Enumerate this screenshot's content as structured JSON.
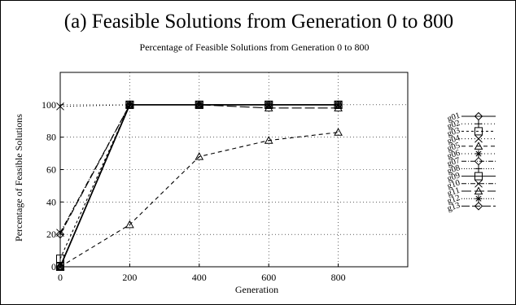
{
  "panel_title": "(a) Feasible Solutions from Generation 0 to 800",
  "chart_data": {
    "type": "line",
    "title": "Percentage of Feasible Solutions from Generation 0 to 800",
    "xlabel": "Generation",
    "ylabel": "Percentage of Feasible Solutions",
    "x": [
      0,
      200,
      400,
      600,
      800
    ],
    "xlim": [
      0,
      1000
    ],
    "ylim": [
      0,
      120
    ],
    "xticks": [
      0,
      200,
      400,
      600,
      800
    ],
    "yticks": [
      0,
      20,
      40,
      60,
      80,
      100
    ],
    "grid": true,
    "legend_position": "right",
    "series": [
      {
        "name": "g01",
        "values": [
          0,
          100,
          100,
          100,
          100
        ],
        "dash": "",
        "marker": "diamond"
      },
      {
        "name": "g02",
        "values": [
          0,
          100,
          100,
          100,
          100
        ],
        "dash": "1,3",
        "marker": "plus"
      },
      {
        "name": "g03",
        "values": [
          5,
          100,
          100,
          100,
          100
        ],
        "dash": "3,3",
        "marker": "square"
      },
      {
        "name": "g04",
        "values": [
          99,
          100,
          100,
          100,
          100
        ],
        "dash": "1,3",
        "marker": "cross"
      },
      {
        "name": "g05",
        "values": [
          0,
          26,
          68,
          78,
          83
        ],
        "dash": "5,4",
        "marker": "triangle"
      },
      {
        "name": "g06",
        "values": [
          0,
          100,
          100,
          100,
          100
        ],
        "dash": "1,3",
        "marker": "star"
      },
      {
        "name": "g07",
        "values": [
          0,
          100,
          100,
          100,
          100
        ],
        "dash": "6,2,1,2",
        "marker": "diamond"
      },
      {
        "name": "g08",
        "values": [
          0,
          100,
          100,
          100,
          100
        ],
        "dash": "1,2",
        "marker": "plus"
      },
      {
        "name": "g09",
        "values": [
          0,
          100,
          100,
          100,
          100
        ],
        "dash": "",
        "marker": "square"
      },
      {
        "name": "g10",
        "values": [
          21,
          100,
          100,
          100,
          100
        ],
        "dash": "6,2,1,2",
        "marker": "cross"
      },
      {
        "name": "g11",
        "values": [
          0,
          100,
          100,
          98,
          98
        ],
        "dash": "12,4",
        "marker": "triangle"
      },
      {
        "name": "g12",
        "values": [
          0,
          100,
          100,
          100,
          100
        ],
        "dash": "1,2",
        "marker": "star"
      },
      {
        "name": "g13",
        "values": [
          20,
          100,
          100,
          100,
          100
        ],
        "dash": "10,3",
        "marker": "diamond"
      }
    ]
  }
}
